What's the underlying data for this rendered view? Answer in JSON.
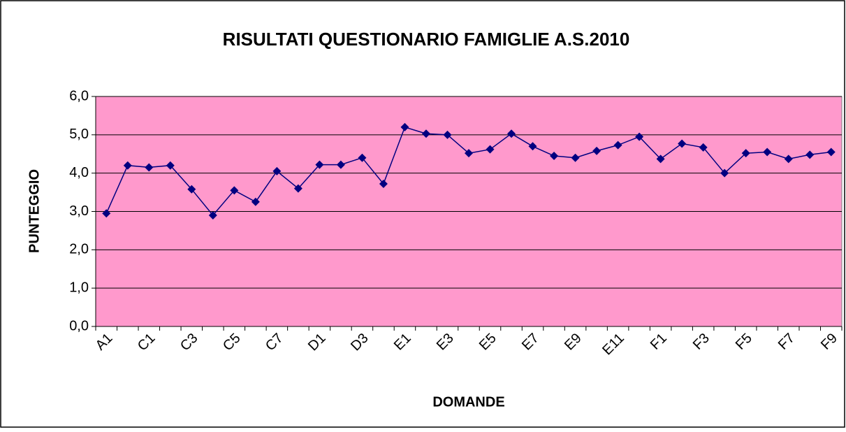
{
  "chart_data": {
    "type": "line",
    "title": "RISULTATI QUESTIONARIO FAMIGLIE A.S.2010",
    "x_label": "DOMANDE",
    "y_label": "PUNTEGGIO",
    "categories": [
      "A1",
      null,
      "C1",
      null,
      "C3",
      null,
      "C5",
      null,
      "C7",
      null,
      "D1",
      null,
      "D3",
      null,
      "E1",
      null,
      "E3",
      null,
      "E5",
      null,
      "E7",
      null,
      "E9",
      null,
      "E11",
      null,
      "F1",
      null,
      "F3",
      null,
      "F5",
      null,
      "F7",
      null,
      "F9"
    ],
    "series": [
      {
        "name": null,
        "color": "#000080",
        "values": [
          2.95,
          4.2,
          4.15,
          4.2,
          3.58,
          2.9,
          3.55,
          3.25,
          4.05,
          3.6,
          4.22,
          4.22,
          4.4,
          3.72,
          5.2,
          5.03,
          5.0,
          4.52,
          4.62,
          5.03,
          4.7,
          4.45,
          4.4,
          4.58,
          4.73,
          4.95,
          4.37,
          4.77,
          4.67,
          4.0,
          4.52,
          4.55,
          4.37,
          4.48,
          4.55
        ]
      }
    ],
    "ylim": [
      0,
      6
    ],
    "yticks": [
      {
        "value": 0,
        "label": "0,0"
      },
      {
        "value": 1,
        "label": "1,0"
      },
      {
        "value": 2,
        "label": "2,0"
      },
      {
        "value": 3,
        "label": "3,0"
      },
      {
        "value": 4,
        "label": "4,0"
      },
      {
        "value": 5,
        "label": "5,0"
      },
      {
        "value": 6,
        "label": "6,0"
      }
    ],
    "grid": true,
    "plot_background": "#ff99cc"
  }
}
